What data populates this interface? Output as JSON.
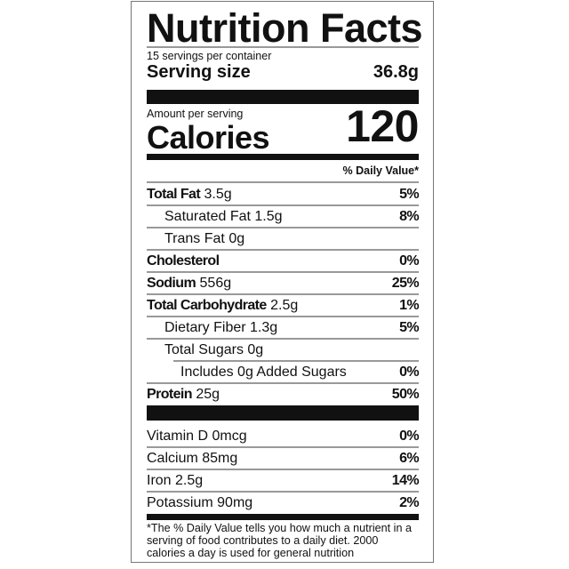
{
  "title": "Nutrition Facts",
  "servings_per_container": "15 servings per container",
  "serving_size": {
    "label": "Serving size",
    "value": "36.8g"
  },
  "amount_per_serving": "Amount per serving",
  "calories": {
    "label": "Calories",
    "value": "120"
  },
  "daily_value_header": "% Daily Value*",
  "nutrients": [
    {
      "name": "Total Fat",
      "amount": "3.5g",
      "dv": "5%"
    },
    {
      "name": "Saturated Fat",
      "amount": "1.5g",
      "dv": "8%"
    },
    {
      "name": "Trans Fat",
      "amount": "0g",
      "dv": ""
    },
    {
      "name": "Cholesterol",
      "amount": "",
      "dv": "0%"
    },
    {
      "name": "Sodium",
      "amount": "556g",
      "dv": "25%"
    },
    {
      "name": "Total Carbohydrate",
      "amount": "2.5g",
      "dv": "1%"
    },
    {
      "name": "Dietary Fiber",
      "amount": "1.3g",
      "dv": "5%"
    },
    {
      "name": "Total Sugars",
      "amount": "0g",
      "dv": ""
    },
    {
      "name": "Includes 0g Added Sugars",
      "amount": "",
      "dv": "0%"
    },
    {
      "name": "Protein",
      "amount": "25g",
      "dv": "50%"
    }
  ],
  "vitamins": [
    {
      "name": "Vitamin D",
      "amount": "0mcg",
      "dv": "0%"
    },
    {
      "name": "Calcium",
      "amount": "85mg",
      "dv": "6%"
    },
    {
      "name": "Iron",
      "amount": "2.5g",
      "dv": "14%"
    },
    {
      "name": "Potassium",
      "amount": "90mg",
      "dv": "2%"
    }
  ],
  "footnote": "*The % Daily Value tells you how much a nutrient in a serving of food contributes to a daily diet. 2000 calories a day is used for general nutrition"
}
